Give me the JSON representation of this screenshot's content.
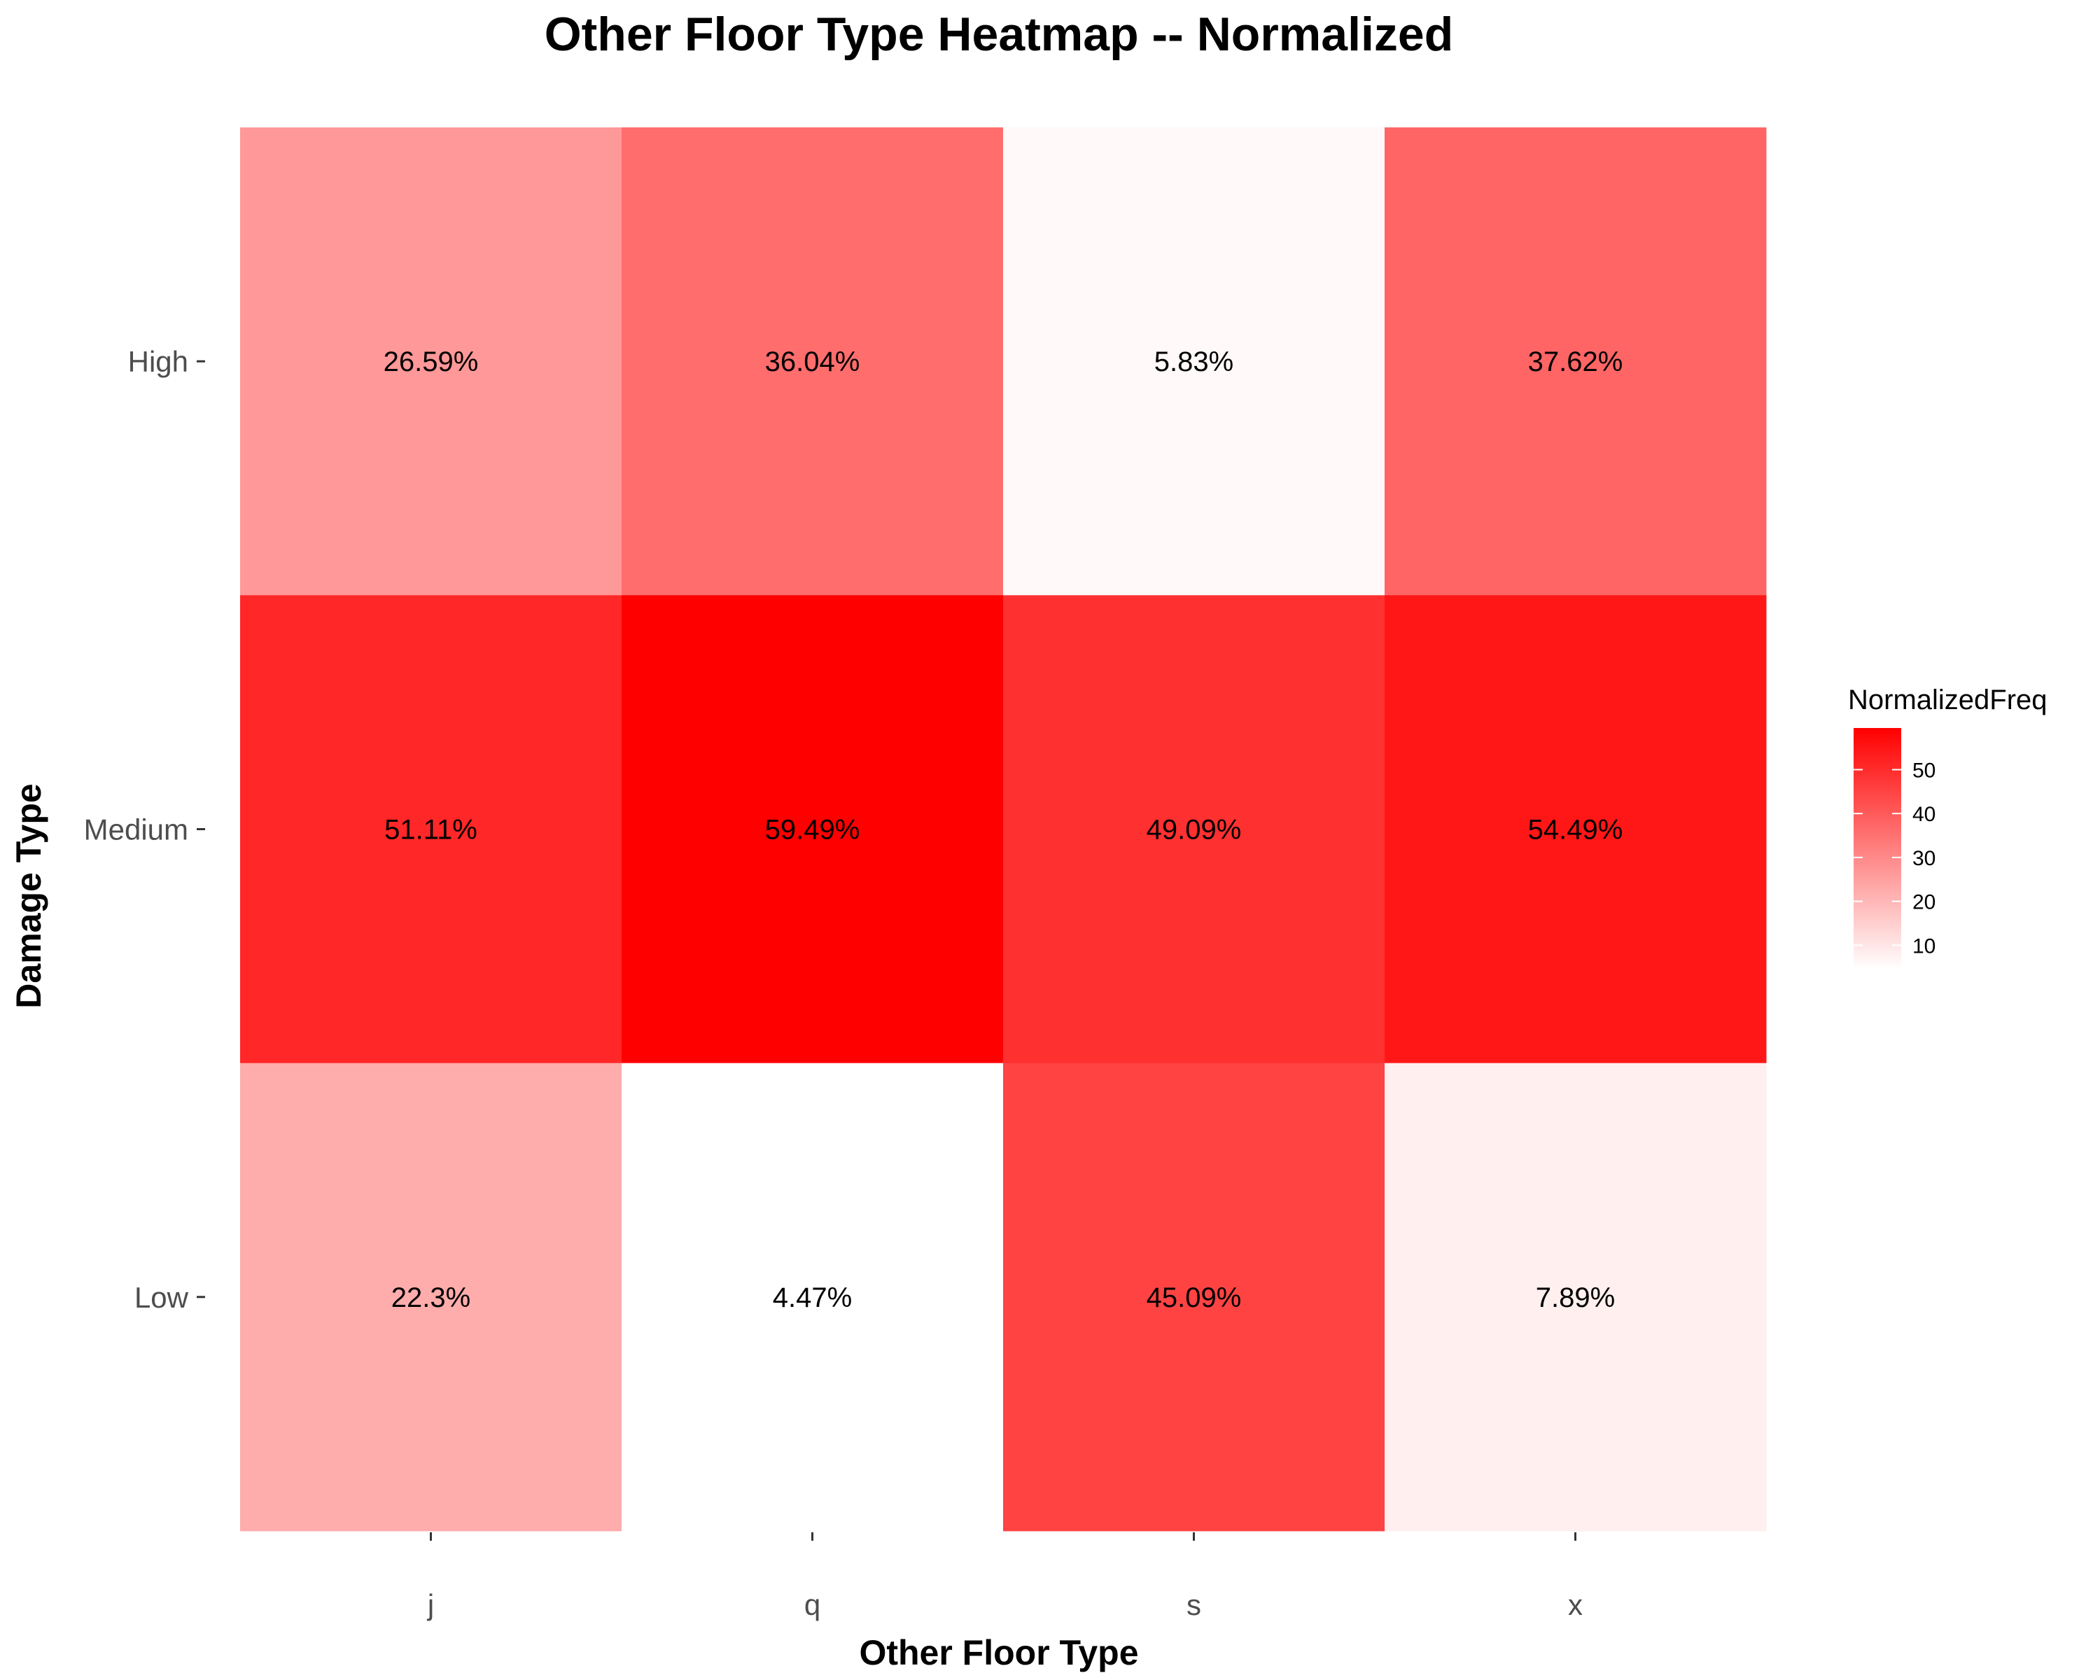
{
  "chart_data": {
    "type": "heatmap",
    "title": "Other Floor Type Heatmap -- Normalized",
    "xlabel": "Other Floor Type",
    "ylabel": "Damage Type",
    "x_categories": [
      "j",
      "q",
      "s",
      "x"
    ],
    "y_categories": [
      "High",
      "Medium",
      "Low"
    ],
    "values": [
      [
        26.59,
        36.04,
        5.83,
        37.62
      ],
      [
        51.11,
        59.49,
        49.09,
        54.49
      ],
      [
        22.3,
        4.47,
        45.09,
        7.89
      ]
    ],
    "cell_labels": [
      [
        "26.59%",
        "36.04%",
        "5.83%",
        "37.62%"
      ],
      [
        "51.11%",
        "59.49%",
        "49.09%",
        "54.49%"
      ],
      [
        "22.3%",
        "4.47%",
        "45.09%",
        "7.89%"
      ]
    ],
    "legend": {
      "title": "NormalizedFreq",
      "ticks": [
        10,
        20,
        30,
        40,
        50
      ],
      "tick_labels": [
        "10",
        "20",
        "30",
        "40",
        "50"
      ],
      "range": [
        4.47,
        59.49
      ],
      "low_color": "#ffffff",
      "high_color": "#ff0000",
      "placement": "right"
    }
  }
}
